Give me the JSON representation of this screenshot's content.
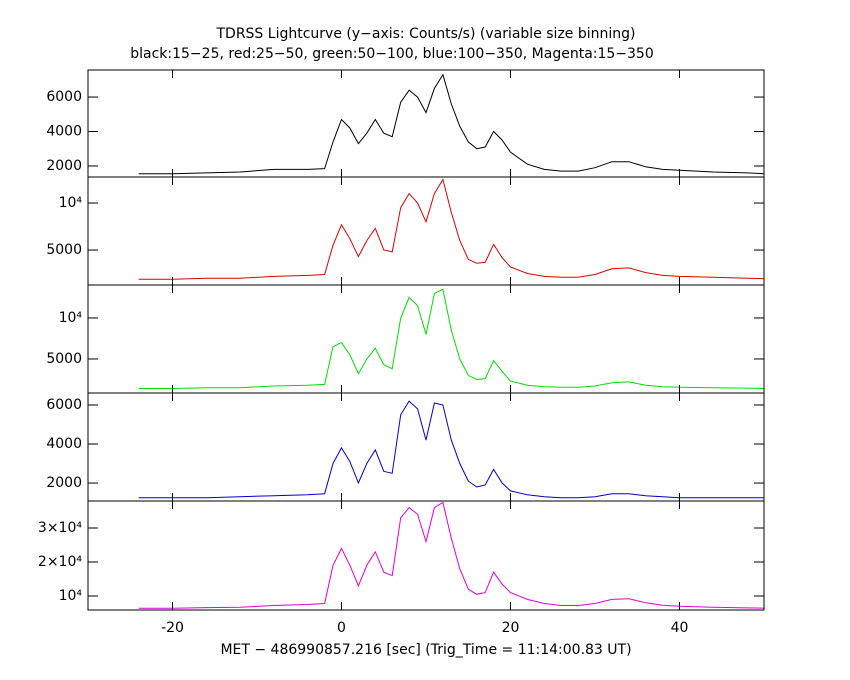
{
  "chart_data": {
    "type": "line",
    "title": "TDRSS Lightcurve (y−axis: Counts/s) (variable size binning)",
    "subtitle": "black:15−25, red:25−50, green:50−100, blue:100−350, Magenta:15−350",
    "xlabel": "MET − 486990857.216 [sec] (Trig_Time = 11:14:00.83 UT)",
    "xlim": [
      -30,
      50
    ],
    "xticks": [
      -20,
      0,
      20,
      40
    ],
    "x": [
      -24,
      -20,
      -16,
      -12,
      -8,
      -4,
      -2,
      -1,
      0,
      1,
      2,
      3,
      4,
      5,
      6,
      7,
      8,
      9,
      10,
      11,
      12,
      13,
      14,
      15,
      16,
      17,
      18,
      19,
      20,
      22,
      24,
      26,
      28,
      30,
      32,
      34,
      36,
      38,
      40,
      44,
      48,
      50
    ],
    "panels": [
      {
        "ylim": [
          1360,
          7570
        ],
        "yticks": [
          2000,
          4000,
          6000
        ],
        "series": [
          {
            "color": "#000000",
            "values": [
              1550,
              1550,
              1600,
              1650,
              1800,
              1800,
              1850,
              3400,
              4700,
              4200,
              3300,
              3900,
              4700,
              3900,
              3700,
              5700,
              6400,
              6000,
              5100,
              6500,
              7300,
              5600,
              4300,
              3400,
              3000,
              3100,
              4000,
              3500,
              2800,
              2100,
              1800,
              1700,
              1700,
              1900,
              2250,
              2250,
              1950,
              1800,
              1750,
              1650,
              1600,
              1550
            ]
          }
        ]
      },
      {
        "ylim": [
          1280,
          12770
        ],
        "yticks": [
          5000,
          {
            "value": 10000,
            "label": "10⁴"
          }
        ],
        "series": [
          {
            "color": "#e00000",
            "values": [
              1900,
              1900,
              2000,
              2000,
              2200,
              2300,
              2400,
              5500,
              7700,
              6200,
              4300,
              6000,
              7300,
              5000,
              4800,
              9500,
              11000,
              10000,
              8000,
              11000,
              12500,
              9000,
              6000,
              4000,
              3600,
              3700,
              5600,
              4200,
              3200,
              2500,
              2200,
              2100,
              2100,
              2400,
              3000,
              3100,
              2600,
              2300,
              2200,
              2100,
              2000,
              1950
            ]
          }
        ]
      },
      {
        "ylim": [
          850,
          14020
        ],
        "yticks": [
          5000,
          {
            "value": 10000,
            "label": "10⁴"
          }
        ],
        "series": [
          {
            "color": "#00e000",
            "values": [
              1400,
              1400,
              1500,
              1500,
              1700,
              1800,
              1900,
              6500,
              7000,
              5500,
              3200,
              5000,
              6300,
              4300,
              3800,
              10000,
              12500,
              11500,
              8000,
              13000,
              13500,
              8500,
              5000,
              3000,
              2500,
              2600,
              4800,
              3500,
              2300,
              1800,
              1600,
              1550,
              1550,
              1700,
              2100,
              2200,
              1800,
              1600,
              1550,
              1500,
              1450,
              1400
            ]
          }
        ]
      },
      {
        "ylim": [
          1080,
          6615
        ],
        "yticks": [
          2000,
          4000,
          6000
        ],
        "series": [
          {
            "color": "#0000d0",
            "values": [
              1250,
              1250,
              1250,
              1300,
              1350,
              1400,
              1450,
              3000,
              3800,
              3100,
              2000,
              3000,
              3700,
              2600,
              2500,
              5500,
              6200,
              5800,
              4200,
              6100,
              6000,
              4200,
              3000,
              2100,
              1800,
              1900,
              2700,
              2000,
              1600,
              1400,
              1300,
              1250,
              1250,
              1300,
              1450,
              1450,
              1350,
              1300,
              1250,
              1250,
              1250,
              1250
            ]
          }
        ]
      },
      {
        "ylim": [
          5880,
          37940
        ],
        "yticks": [
          {
            "value": 10000,
            "label": "10⁴"
          },
          {
            "value": 20000,
            "label": "2×10⁴"
          },
          {
            "value": 30000,
            "label": "3×10⁴"
          }
        ],
        "series": [
          {
            "color": "#e000e0",
            "values": [
              6400,
              6400,
              6600,
              6700,
              7200,
              7500,
              7800,
              19000,
              24000,
              19000,
              13000,
              19000,
              23000,
              17000,
              16000,
              33000,
              36000,
              34000,
              26000,
              36000,
              37500,
              27000,
              18000,
              12000,
              10500,
              11000,
              17000,
              13500,
              11000,
              9000,
              7800,
              7200,
              7200,
              7800,
              9000,
              9200,
              8000,
              7300,
              7000,
              6700,
              6500,
              6400
            ]
          }
        ]
      }
    ]
  }
}
